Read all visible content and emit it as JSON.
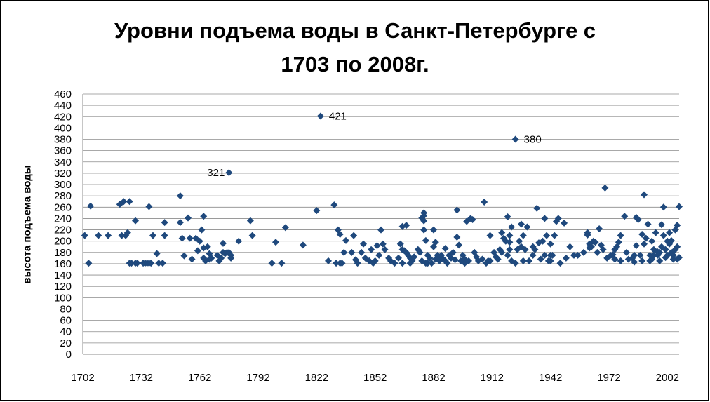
{
  "chart_data": {
    "type": "scatter",
    "title_line1": "Уровни подъема воды в Санкт-Петербурге с",
    "title_line2": "1703 по 2008г.",
    "xlabel": "",
    "ylabel": "высота подъема воды",
    "xlim": [
      1702,
      2008
    ],
    "ylim": [
      0,
      460
    ],
    "x_ticks": [
      1702,
      1732,
      1762,
      1792,
      1822,
      1852,
      1882,
      1912,
      1942,
      1972,
      2002
    ],
    "y_ticks": [
      0,
      20,
      40,
      60,
      80,
      100,
      120,
      140,
      160,
      180,
      200,
      220,
      240,
      260,
      280,
      300,
      320,
      340,
      360,
      380,
      400,
      420,
      440,
      460
    ],
    "grid": "horizontal",
    "marker": "diamond",
    "color": "#1F497D",
    "annotations": [
      {
        "x": 1777,
        "y": 321,
        "label": "321",
        "position": "left"
      },
      {
        "x": 1824,
        "y": 421,
        "label": "421",
        "position": "right"
      },
      {
        "x": 1924,
        "y": 380,
        "label": "380",
        "position": "right"
      }
    ],
    "points": [
      [
        1703,
        210
      ],
      [
        1705,
        161
      ],
      [
        1706,
        262
      ],
      [
        1710,
        210
      ],
      [
        1715,
        210
      ],
      [
        1721,
        265
      ],
      [
        1722,
        210
      ],
      [
        1723,
        270
      ],
      [
        1724,
        210
      ],
      [
        1725,
        215
      ],
      [
        1726,
        270
      ],
      [
        1726,
        161
      ],
      [
        1727,
        161
      ],
      [
        1729,
        236
      ],
      [
        1729,
        161
      ],
      [
        1730,
        161
      ],
      [
        1733,
        161
      ],
      [
        1734,
        161
      ],
      [
        1735,
        161
      ],
      [
        1736,
        261
      ],
      [
        1736,
        161
      ],
      [
        1737,
        161
      ],
      [
        1738,
        210
      ],
      [
        1740,
        178
      ],
      [
        1741,
        161
      ],
      [
        1743,
        161
      ],
      [
        1744,
        233
      ],
      [
        1744,
        210
      ],
      [
        1752,
        280
      ],
      [
        1752,
        233
      ],
      [
        1753,
        205
      ],
      [
        1754,
        174
      ],
      [
        1756,
        241
      ],
      [
        1757,
        205
      ],
      [
        1758,
        168
      ],
      [
        1760,
        205
      ],
      [
        1761,
        183
      ],
      [
        1762,
        200
      ],
      [
        1763,
        220
      ],
      [
        1764,
        244
      ],
      [
        1764,
        188
      ],
      [
        1764,
        170
      ],
      [
        1765,
        165
      ],
      [
        1766,
        190
      ],
      [
        1767,
        178
      ],
      [
        1767,
        168
      ],
      [
        1768,
        170
      ],
      [
        1771,
        175
      ],
      [
        1772,
        165
      ],
      [
        1773,
        170
      ],
      [
        1774,
        180
      ],
      [
        1774,
        196
      ],
      [
        1775,
        178
      ],
      [
        1776,
        180
      ],
      [
        1777,
        321
      ],
      [
        1777,
        180
      ],
      [
        1778,
        175
      ],
      [
        1778,
        170
      ],
      [
        1782,
        200
      ],
      [
        1788,
        236
      ],
      [
        1789,
        210
      ],
      [
        1799,
        161
      ],
      [
        1801,
        198
      ],
      [
        1804,
        161
      ],
      [
        1806,
        224
      ],
      [
        1815,
        193
      ],
      [
        1822,
        254
      ],
      [
        1824,
        421
      ],
      [
        1828,
        165
      ],
      [
        1831,
        264
      ],
      [
        1832,
        161
      ],
      [
        1833,
        220
      ],
      [
        1834,
        212
      ],
      [
        1834,
        161
      ],
      [
        1835,
        161
      ],
      [
        1836,
        180
      ],
      [
        1837,
        201
      ],
      [
        1840,
        180
      ],
      [
        1841,
        210
      ],
      [
        1842,
        167
      ],
      [
        1843,
        161
      ],
      [
        1845,
        180
      ],
      [
        1846,
        195
      ],
      [
        1847,
        170
      ],
      [
        1849,
        165
      ],
      [
        1850,
        185
      ],
      [
        1851,
        161
      ],
      [
        1852,
        165
      ],
      [
        1853,
        192
      ],
      [
        1854,
        175
      ],
      [
        1855,
        220
      ],
      [
        1856,
        195
      ],
      [
        1857,
        185
      ],
      [
        1859,
        170
      ],
      [
        1860,
        165
      ],
      [
        1862,
        161
      ],
      [
        1864,
        170
      ],
      [
        1865,
        195
      ],
      [
        1866,
        185
      ],
      [
        1866,
        226
      ],
      [
        1866,
        161
      ],
      [
        1867,
        183
      ],
      [
        1868,
        228
      ],
      [
        1868,
        180
      ],
      [
        1869,
        175
      ],
      [
        1870,
        161
      ],
      [
        1870,
        170
      ],
      [
        1871,
        165
      ],
      [
        1872,
        172
      ],
      [
        1874,
        185
      ],
      [
        1875,
        180
      ],
      [
        1876,
        165
      ],
      [
        1876,
        241
      ],
      [
        1877,
        245
      ],
      [
        1877,
        250
      ],
      [
        1877,
        236
      ],
      [
        1877,
        220
      ],
      [
        1878,
        201
      ],
      [
        1878,
        161
      ],
      [
        1879,
        175
      ],
      [
        1879,
        161
      ],
      [
        1880,
        170
      ],
      [
        1881,
        161
      ],
      [
        1882,
        220
      ],
      [
        1882,
        190
      ],
      [
        1883,
        168
      ],
      [
        1883,
        198
      ],
      [
        1884,
        175
      ],
      [
        1885,
        165
      ],
      [
        1885,
        170
      ],
      [
        1886,
        175
      ],
      [
        1887,
        168
      ],
      [
        1888,
        187
      ],
      [
        1888,
        165
      ],
      [
        1889,
        161
      ],
      [
        1890,
        175
      ],
      [
        1891,
        170
      ],
      [
        1892,
        180
      ],
      [
        1893,
        167
      ],
      [
        1894,
        255
      ],
      [
        1894,
        207
      ],
      [
        1895,
        193
      ],
      [
        1896,
        165
      ],
      [
        1897,
        175
      ],
      [
        1898,
        168
      ],
      [
        1898,
        161
      ],
      [
        1899,
        235
      ],
      [
        1900,
        165
      ],
      [
        1901,
        240
      ],
      [
        1902,
        238
      ],
      [
        1903,
        180
      ],
      [
        1904,
        172
      ],
      [
        1905,
        165
      ],
      [
        1907,
        168
      ],
      [
        1908,
        269
      ],
      [
        1909,
        161
      ],
      [
        1910,
        165
      ],
      [
        1911,
        210
      ],
      [
        1911,
        165
      ],
      [
        1913,
        180
      ],
      [
        1914,
        172
      ],
      [
        1915,
        168
      ],
      [
        1916,
        185
      ],
      [
        1917,
        215
      ],
      [
        1917,
        180
      ],
      [
        1918,
        205
      ],
      [
        1919,
        200
      ],
      [
        1920,
        175
      ],
      [
        1920,
        243
      ],
      [
        1921,
        210
      ],
      [
        1921,
        198
      ],
      [
        1921,
        185
      ],
      [
        1922,
        165
      ],
      [
        1922,
        225
      ],
      [
        1924,
        161
      ],
      [
        1924,
        380
      ],
      [
        1925,
        185
      ],
      [
        1926,
        200
      ],
      [
        1927,
        230
      ],
      [
        1927,
        190
      ],
      [
        1928,
        210
      ],
      [
        1928,
        165
      ],
      [
        1929,
        185
      ],
      [
        1930,
        225
      ],
      [
        1931,
        165
      ],
      [
        1933,
        175
      ],
      [
        1933,
        190
      ],
      [
        1934,
        185
      ],
      [
        1935,
        258
      ],
      [
        1936,
        197
      ],
      [
        1937,
        168
      ],
      [
        1938,
        200
      ],
      [
        1939,
        175
      ],
      [
        1939,
        240
      ],
      [
        1940,
        210
      ],
      [
        1941,
        165
      ],
      [
        1942,
        165
      ],
      [
        1942,
        175
      ],
      [
        1942,
        195
      ],
      [
        1943,
        175
      ],
      [
        1944,
        210
      ],
      [
        1945,
        235
      ],
      [
        1946,
        240
      ],
      [
        1947,
        161
      ],
      [
        1949,
        232
      ],
      [
        1950,
        170
      ],
      [
        1952,
        190
      ],
      [
        1954,
        175
      ],
      [
        1956,
        175
      ],
      [
        1959,
        180
      ],
      [
        1961,
        215
      ],
      [
        1961,
        211
      ],
      [
        1962,
        195
      ],
      [
        1962,
        188
      ],
      [
        1963,
        190
      ],
      [
        1964,
        200
      ],
      [
        1965,
        198
      ],
      [
        1966,
        180
      ],
      [
        1967,
        222
      ],
      [
        1968,
        193
      ],
      [
        1969,
        185
      ],
      [
        1970,
        294
      ],
      [
        1971,
        170
      ],
      [
        1973,
        175
      ],
      [
        1974,
        176
      ],
      [
        1975,
        185
      ],
      [
        1975,
        168
      ],
      [
        1976,
        190
      ],
      [
        1977,
        198
      ],
      [
        1978,
        210
      ],
      [
        1978,
        165
      ],
      [
        1980,
        244
      ],
      [
        1981,
        180
      ],
      [
        1982,
        168
      ],
      [
        1984,
        170
      ],
      [
        1985,
        175
      ],
      [
        1985,
        163
      ],
      [
        1986,
        242
      ],
      [
        1986,
        192
      ],
      [
        1987,
        238
      ],
      [
        1988,
        175
      ],
      [
        1989,
        212
      ],
      [
        1989,
        165
      ],
      [
        1990,
        282
      ],
      [
        1990,
        195
      ],
      [
        1991,
        205
      ],
      [
        1992,
        230
      ],
      [
        1993,
        175
      ],
      [
        1993,
        165
      ],
      [
        1994,
        200
      ],
      [
        1994,
        168
      ],
      [
        1995,
        185
      ],
      [
        1995,
        175
      ],
      [
        1996,
        215
      ],
      [
        1997,
        181
      ],
      [
        1997,
        175
      ],
      [
        1998,
        180
      ],
      [
        1998,
        165
      ],
      [
        1999,
        229
      ],
      [
        1999,
        190
      ],
      [
        2000,
        260
      ],
      [
        2000,
        210
      ],
      [
        2001,
        185
      ],
      [
        2001,
        171
      ],
      [
        2002,
        200
      ],
      [
        2002,
        175
      ],
      [
        2003,
        215
      ],
      [
        2003,
        195
      ],
      [
        2004,
        201
      ],
      [
        2004,
        180
      ],
      [
        2005,
        175
      ],
      [
        2005,
        168
      ],
      [
        2006,
        220
      ],
      [
        2006,
        185
      ],
      [
        2007,
        228
      ],
      [
        2007,
        190
      ],
      [
        2007,
        168
      ],
      [
        2008,
        261
      ],
      [
        2008,
        171
      ]
    ]
  }
}
